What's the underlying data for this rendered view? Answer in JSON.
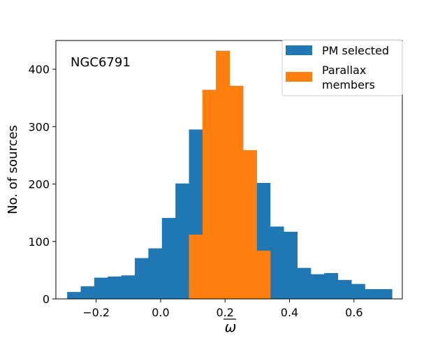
{
  "chart_data": {
    "type": "bar",
    "title": "",
    "annotation": "NGC6791",
    "xlabel": "ω",
    "ylabel": "No. of sources",
    "xlim": [
      -0.325,
      0.75
    ],
    "ylim": [
      0,
      450
    ],
    "xticks": [
      -0.2,
      0.0,
      0.2,
      0.4,
      0.6
    ],
    "xtick_labels": [
      "−0.2",
      "0.0",
      "0.2",
      "0.4",
      "0.6"
    ],
    "yticks": [
      0,
      100,
      200,
      300,
      400
    ],
    "ytick_labels": [
      "0",
      "100",
      "200",
      "300",
      "400"
    ],
    "legend": {
      "placement": "top-right"
    },
    "series": [
      {
        "name": "PM selected",
        "legend_label": [
          "PM selected"
        ],
        "color": "#1f77b4",
        "bin_edges": [
          -0.29,
          -0.248,
          -0.206,
          -0.164,
          -0.122,
          -0.08,
          -0.038,
          0.004,
          0.046,
          0.088,
          0.13,
          0.172,
          0.214,
          0.256,
          0.298,
          0.34,
          0.382,
          0.424,
          0.466,
          0.508,
          0.55,
          0.592,
          0.634,
          0.676,
          0.718
        ],
        "values": [
          12,
          22,
          37,
          39,
          41,
          71,
          88,
          141,
          201,
          295,
          364,
          432,
          371,
          259,
          202,
          126,
          117,
          54,
          43,
          45,
          33,
          26,
          17,
          17
        ]
      },
      {
        "name": "Parallax members",
        "legend_label": [
          "Parallax",
          "members"
        ],
        "color": "#ff7f0e",
        "bin_edges": [
          0.088,
          0.13,
          0.172,
          0.214,
          0.256,
          0.298,
          0.34
        ],
        "values": [
          112,
          364,
          432,
          371,
          259,
          84
        ]
      }
    ]
  }
}
